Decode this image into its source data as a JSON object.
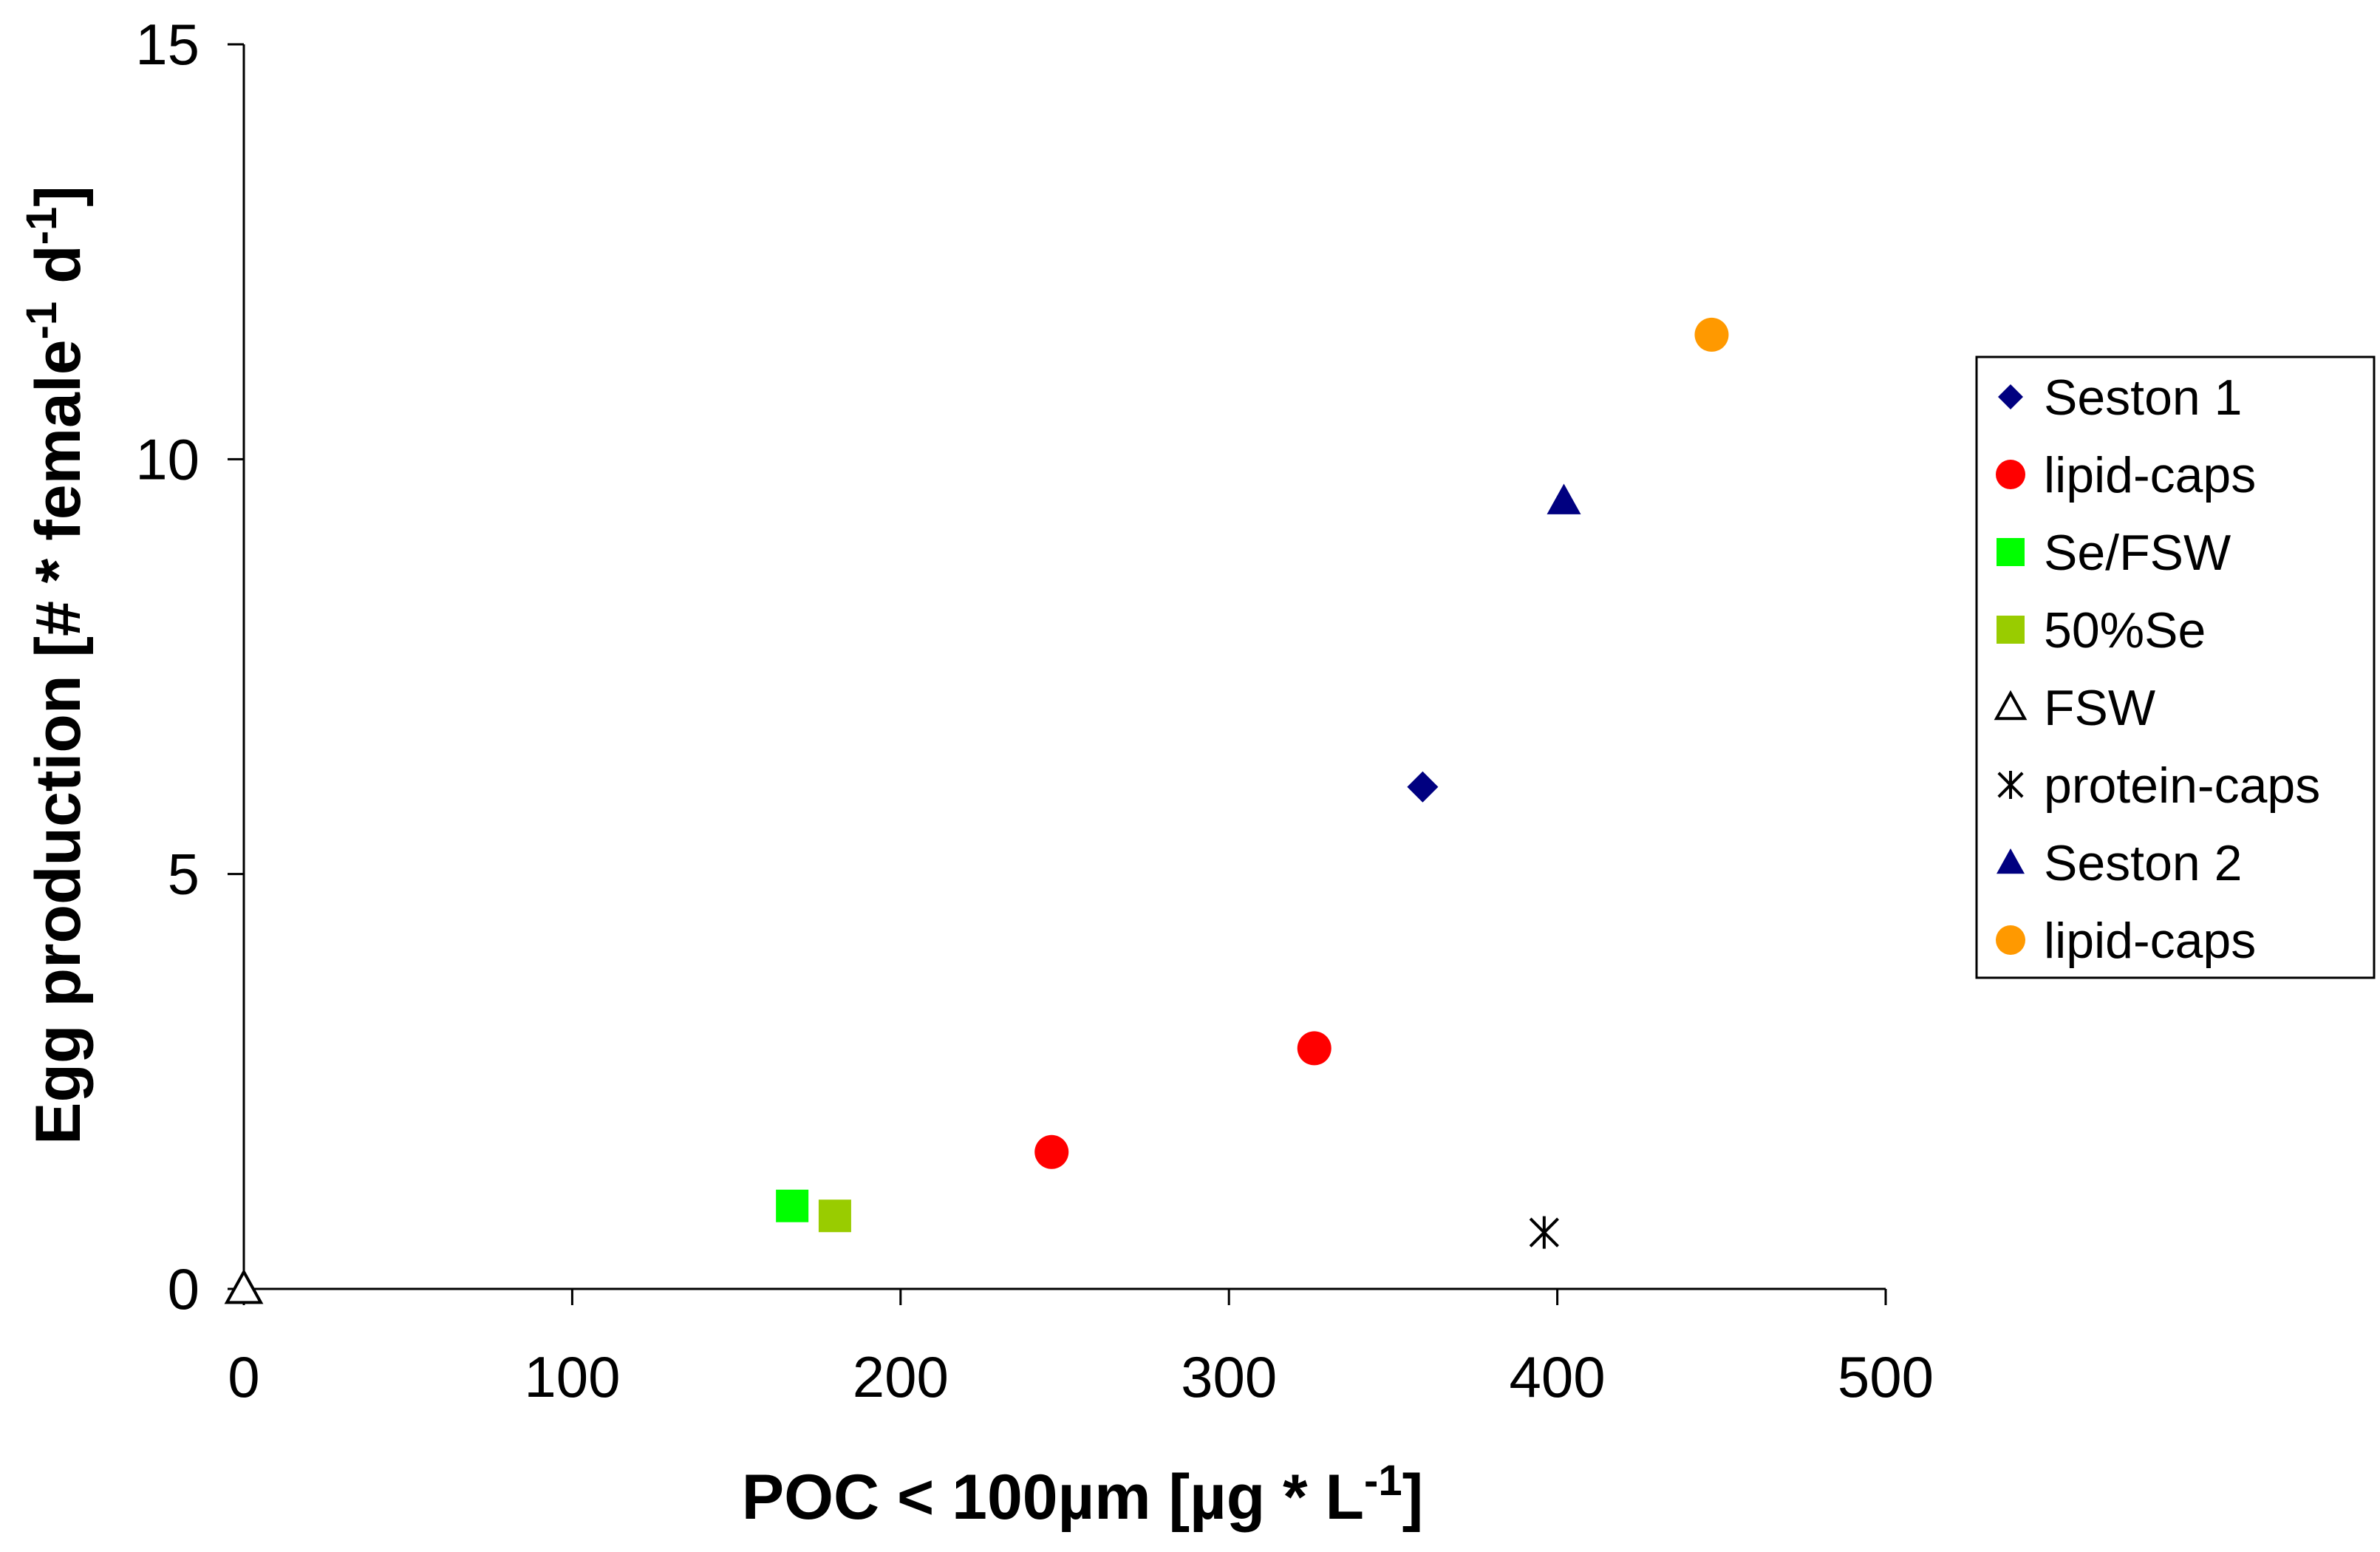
{
  "chart_data": {
    "type": "scatter",
    "xlabel": "POC < 100µm [µg * L-1]",
    "xlabel_parts": {
      "main": "POC < 100µm [µg * L",
      "sup": "-1",
      "end": "]"
    },
    "ylabel": "Egg production [# * female-1 d-1]",
    "ylabel_parts": {
      "main": "Egg production [# * female",
      "sup1": "-1",
      "mid": " d",
      "sup2": "-1",
      "end": "]"
    },
    "xlim": [
      0,
      500
    ],
    "ylim": [
      0,
      15
    ],
    "xticks": [
      0,
      100,
      200,
      300,
      400,
      500
    ],
    "xtick_labels": [
      "0",
      "100",
      "200",
      "300",
      "400",
      "500"
    ],
    "yticks": [
      0,
      5,
      10,
      15
    ],
    "ytick_labels": [
      "0",
      "5",
      "10",
      "15"
    ],
    "grid": false,
    "legend_position": "right",
    "series": [
      {
        "name": "Seston 1",
        "marker": "diamond",
        "color": "#000080",
        "filled": true,
        "points": [
          [
            359,
            6.05
          ]
        ]
      },
      {
        "name": "lipid-caps",
        "marker": "circle",
        "color": "#ff0000",
        "filled": true,
        "points": [
          [
            246,
            1.65
          ],
          [
            326,
            2.9
          ]
        ]
      },
      {
        "name": "Se/FSW",
        "marker": "square",
        "color": "#00ff00",
        "filled": true,
        "points": [
          [
            167,
            1.0
          ]
        ]
      },
      {
        "name": "50%Se",
        "marker": "square",
        "color": "#99cc00",
        "filled": true,
        "points": [
          [
            180,
            0.88
          ]
        ]
      },
      {
        "name": "FSW",
        "marker": "triangle",
        "color": "#000000",
        "filled": false,
        "points": [
          [
            0,
            0.0
          ]
        ]
      },
      {
        "name": "protein-caps",
        "marker": "star",
        "color": "#000000",
        "filled": false,
        "points": [
          [
            396,
            0.68
          ]
        ]
      },
      {
        "name": "Seston 2",
        "marker": "triangle",
        "color": "#000080",
        "filled": true,
        "points": [
          [
            402,
            9.5
          ]
        ]
      },
      {
        "name": "lipid-caps",
        "marker": "circle",
        "color": "#ff9900",
        "filled": true,
        "points": [
          [
            447,
            11.5
          ]
        ]
      }
    ]
  }
}
